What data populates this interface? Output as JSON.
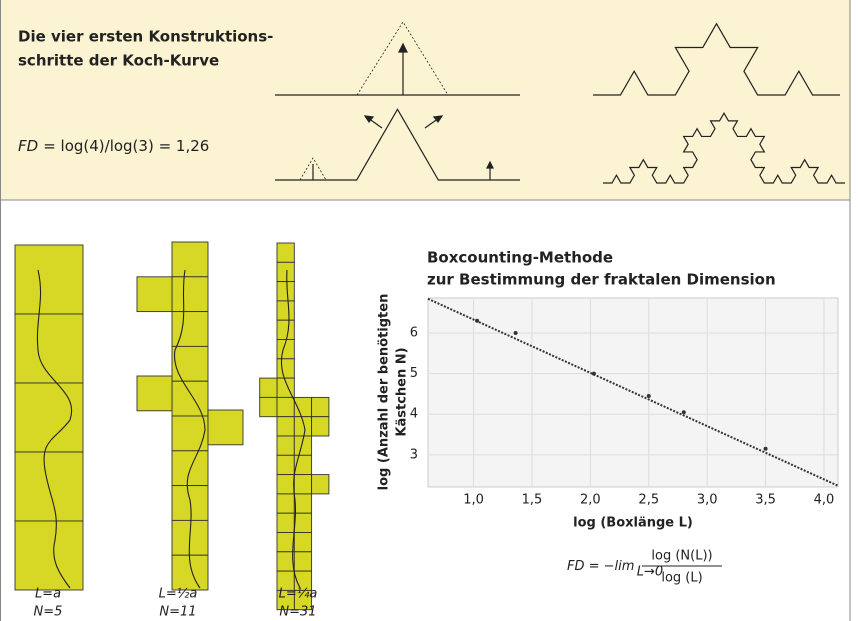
{
  "koch_panel": {
    "title_lines": [
      "Die vier ersten Konstruktions-",
      "schritte der Koch-Kurve"
    ],
    "formula": {
      "symbol": "FD",
      "text": "= log(4)/log(3) = 1,26"
    }
  },
  "boxes": [
    {
      "L": "L=a",
      "N": "N=5"
    },
    {
      "L": "L=½a",
      "N": "N=11"
    },
    {
      "L": "L=¼a",
      "N": "N=31"
    }
  ],
  "chart_data": {
    "type": "line",
    "title_lines": [
      "Boxcounting-Methode",
      "zur Bestimmung der fraktalen Dimension"
    ],
    "x_label": "log (Boxlänge L)",
    "y_label_lines": [
      "log (Anzahl der benötigten",
      "Kästchen N)"
    ],
    "xlim": [
      0.61,
      4.12
    ],
    "ylim": [
      2.21,
      6.86
    ],
    "xticks": [
      {
        "value": 1,
        "label": "1,0"
      },
      {
        "value": 1.5,
        "label": "1,5"
      },
      {
        "value": 2,
        "label": "2,0"
      },
      {
        "value": 2.5,
        "label": "2,5"
      },
      {
        "value": 3,
        "label": "3,0"
      },
      {
        "value": 3.5,
        "label": "3,5"
      },
      {
        "value": 4,
        "label": "4,0"
      }
    ],
    "yticks": [
      3,
      4,
      5,
      6
    ],
    "grid": true,
    "series": [
      {
        "color": "#333333",
        "x": [
          0.61,
          4.12
        ],
        "values": [
          6.84,
          2.24
        ]
      }
    ],
    "points": {
      "color": "#333333",
      "x": [
        1.03,
        1.36,
        2.03,
        2.5,
        2.8,
        3.5
      ],
      "values": [
        6.3,
        6.0,
        5.0,
        4.45,
        4.05,
        3.15
      ]
    },
    "formula": {
      "lhs": "FD = −lim",
      "sub": "L→0",
      "numerator": "log (N(L))",
      "denominator": "log (L)"
    }
  }
}
